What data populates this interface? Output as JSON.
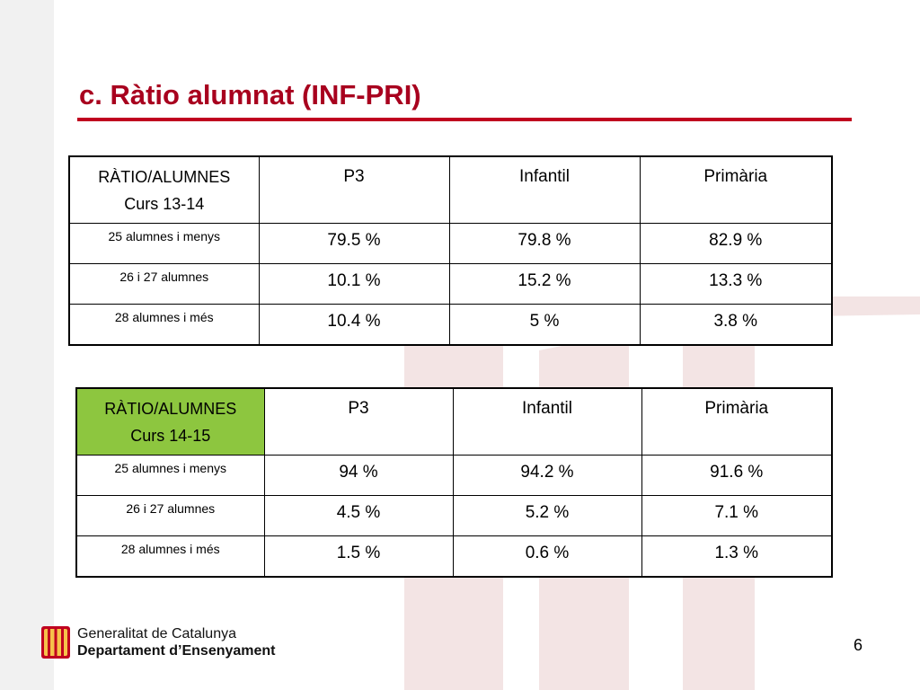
{
  "slide": {
    "title": "c. Ràtio alumnat (INF-PRI)",
    "page_number": "6",
    "accent_color": "#c0001f",
    "highlight_color": "#8dc63f"
  },
  "table1": {
    "header": {
      "corner_line1": "RÀTIO/ALUMNES",
      "corner_line2": "Curs 13-14",
      "col1": "P3",
      "col2": "Infantil",
      "col3": "Primària"
    },
    "rows": [
      {
        "label": "25 alumnes i menys",
        "p3": "79.5 %",
        "infantil": "79.8 %",
        "primaria": "82.9 %"
      },
      {
        "label": "26 i 27 alumnes",
        "p3": "10.1 %",
        "infantil": "15.2 %",
        "primaria": "13.3 %"
      },
      {
        "label": "28 alumnes i més",
        "p3": "10.4 %",
        "infantil": "5 %",
        "primaria": "3.8 %"
      }
    ]
  },
  "table2": {
    "header": {
      "corner_line1": "RÀTIO/ALUMNES",
      "corner_line2": "Curs 14-15",
      "col1": "P3",
      "col2": "Infantil",
      "col3": "Primària"
    },
    "rows": [
      {
        "label": "25 alumnes i menys",
        "p3": "94 %",
        "infantil": "94.2 %",
        "primaria": "91.6 %"
      },
      {
        "label": "26 i 27 alumnes",
        "p3": "4.5 %",
        "infantil": "5.2 %",
        "primaria": "7.1 %"
      },
      {
        "label": "28 alumnes i més",
        "p3": "1.5 %",
        "infantil": "0.6 %",
        "primaria": "1.3 %"
      }
    ]
  },
  "footer": {
    "line1": "Generalitat de Catalunya",
    "line2": "Departament d’Ensenyament",
    "logo_icon": "generalitat-logo-icon"
  }
}
